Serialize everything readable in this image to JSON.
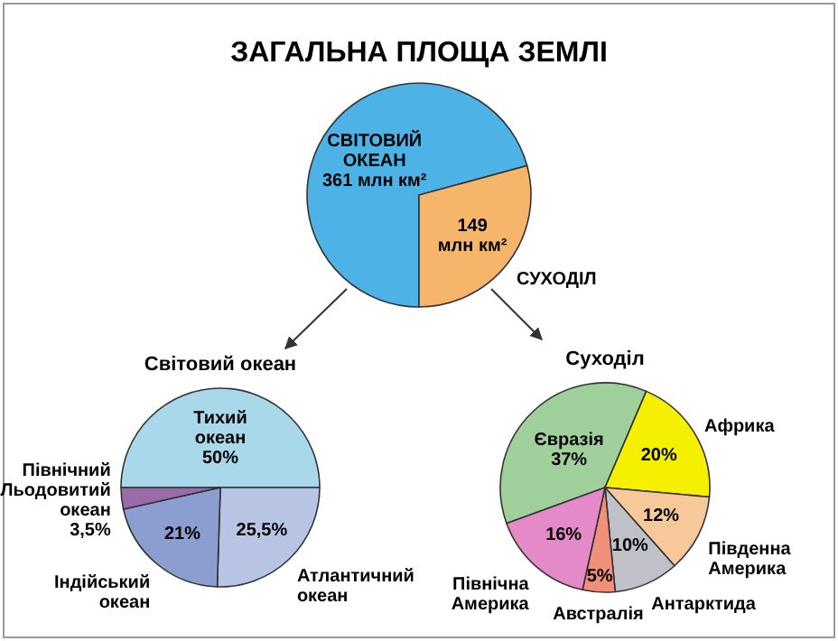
{
  "chart_data": [
    {
      "type": "pie",
      "title": "ЗАГАЛЬНА ПЛОЩА ЗЕМЛІ",
      "categories": [
        "СВІТОВИЙ ОКЕАН",
        "СУХОДІЛ"
      ],
      "values": [
        361,
        149
      ],
      "colors": [
        "#4db3e6",
        "#f5b56b"
      ],
      "value_labels": [
        "361 млн км²",
        "149 млн км²"
      ]
    },
    {
      "type": "pie",
      "title": "Світовий океан",
      "categories": [
        "Тихий океан",
        "Атлантичний океан",
        "Індійський океан",
        "Північний Льодовитий океан"
      ],
      "values": [
        50,
        25.5,
        21,
        3.5
      ],
      "colors": [
        "#a8d8ea",
        "#b8c4e4",
        "#8c9ed0",
        "#9b6aa8"
      ],
      "value_labels": [
        "50%",
        "25,5%",
        "21%",
        "3,5%"
      ]
    },
    {
      "type": "pie",
      "title": "Суходіл",
      "categories": [
        "Євразія",
        "Африка",
        "Південна Америка",
        "Антарктида",
        "Австралія",
        "Північна Америка"
      ],
      "values": [
        37,
        20,
        12,
        10,
        5,
        16
      ],
      "colors": [
        "#9fcf9a",
        "#f5f000",
        "#f7c99a",
        "#c0c0c8",
        "#f0907a",
        "#e58ac8"
      ],
      "value_labels": [
        "37%",
        "20%",
        "12%",
        "10%",
        "5%",
        "16%"
      ]
    }
  ]
}
